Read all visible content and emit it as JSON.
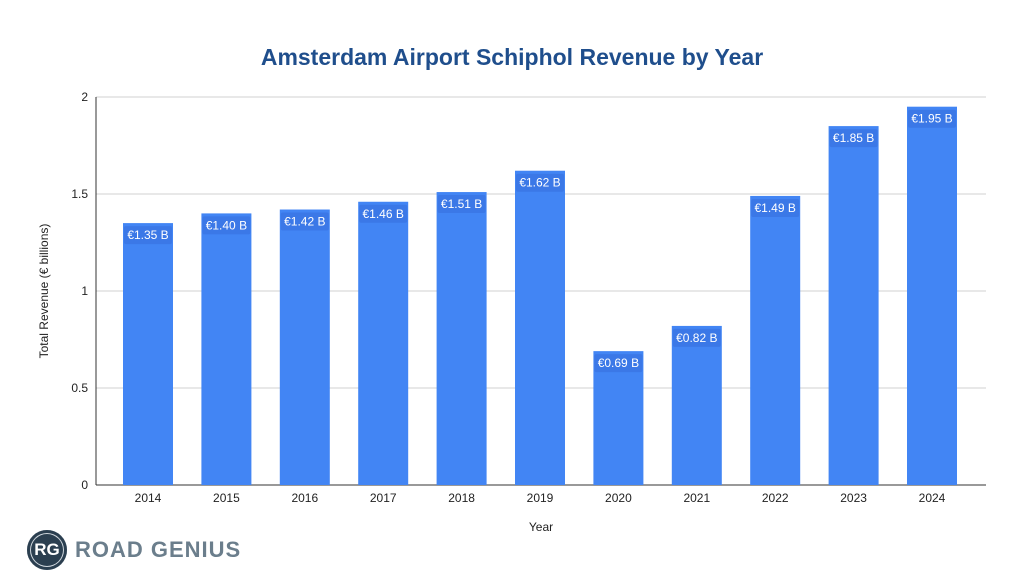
{
  "chart_data": {
    "type": "bar",
    "title": "Amsterdam Airport Schiphol Revenue by Year",
    "xlabel": "Year",
    "ylabel": "Total Revenue (€ billions)",
    "categories": [
      "2014",
      "2015",
      "2016",
      "2017",
      "2018",
      "2019",
      "2020",
      "2021",
      "2022",
      "2023",
      "2024"
    ],
    "values": [
      1.35,
      1.4,
      1.42,
      1.46,
      1.51,
      1.62,
      0.69,
      0.82,
      1.49,
      1.85,
      1.95
    ],
    "data_labels": [
      "€1.35 B",
      "€1.40 B",
      "€1.42 B",
      "€1.46 B",
      "€1.51 B",
      "€1.62 B",
      "€0.69 B",
      "€0.82 B",
      "€1.49 B",
      "€1.85 B",
      "€1.95 B"
    ],
    "yticks": [
      "0",
      "0.5",
      "1",
      "1.5",
      "2"
    ],
    "ylim": [
      0,
      2
    ],
    "grid": true,
    "legend": "none",
    "bar_color": "#4285f4",
    "label_bg": "#3b78e7"
  },
  "brand": {
    "badge": "RG",
    "name": "ROAD GENIUS"
  }
}
